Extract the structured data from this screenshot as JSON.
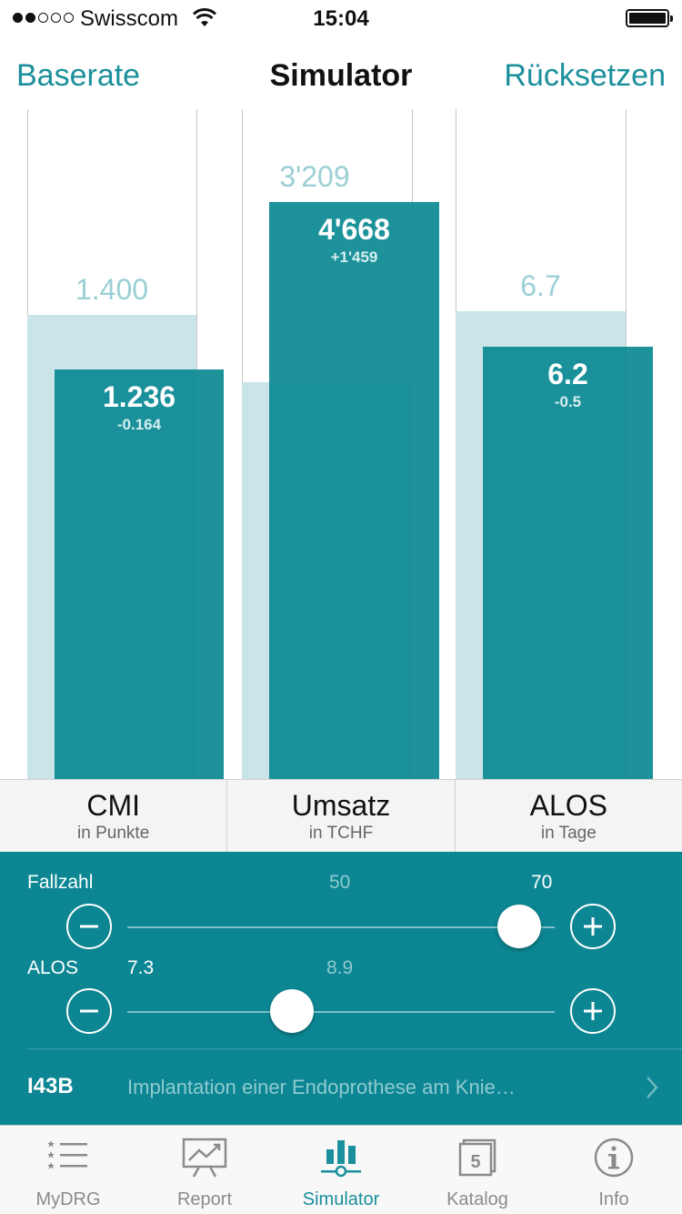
{
  "status_bar": {
    "carrier": "Swisscom",
    "time": "15:04"
  },
  "nav": {
    "left_label": "Baserate",
    "title": "Simulator",
    "right_label": "Rücksetzen"
  },
  "chart_data": {
    "type": "bar",
    "categories": [
      "CMI",
      "Umsatz",
      "ALOS"
    ],
    "series": [
      {
        "name": "baseline",
        "values": [
          1.4,
          3209,
          6.7
        ],
        "labels": [
          "1.400",
          "3'209",
          "6.7"
        ]
      },
      {
        "name": "current",
        "values": [
          1.236,
          4668,
          6.2
        ],
        "labels": [
          "1.236",
          "4'668",
          "6.2"
        ],
        "deltas": [
          "-0.164",
          "+1'459",
          "-0.5"
        ]
      }
    ],
    "scale": {
      "CMI": [
        0,
        2.02
      ],
      "Umsatz": [
        0,
        5418
      ],
      "ALOS": [
        0,
        9.6
      ]
    },
    "grid": false
  },
  "metrics": [
    {
      "name": "CMI",
      "unit": "in Punkte"
    },
    {
      "name": "Umsatz",
      "unit": "in TCHF"
    },
    {
      "name": "ALOS",
      "unit": "in Tage"
    }
  ],
  "controls": {
    "fallzahl": {
      "label": "Fallzahl",
      "reference_value": "50",
      "current_value": "70",
      "position": 0.917
    },
    "alos": {
      "label": "ALOS",
      "current_value": "7.3",
      "reference_value": "8.9",
      "position": 0.386
    },
    "drg": {
      "code": "I43B",
      "description": "Implantation einer Endoprothese am Knie…"
    }
  },
  "colors": {
    "accent": "#1b8f9b",
    "panel": "#0c8693",
    "baseline_bar": "#c9e5e8"
  },
  "tabs": [
    {
      "label": "MyDRG",
      "icon": "list-stars-icon",
      "active": false
    },
    {
      "label": "Report",
      "icon": "presentation-chart-icon",
      "active": false
    },
    {
      "label": "Simulator",
      "icon": "bar-slider-icon",
      "active": true
    },
    {
      "label": "Katalog",
      "icon": "catalog-book-icon",
      "active": false,
      "badge": "5"
    },
    {
      "label": "Info",
      "icon": "info-circle-icon",
      "active": false
    }
  ]
}
